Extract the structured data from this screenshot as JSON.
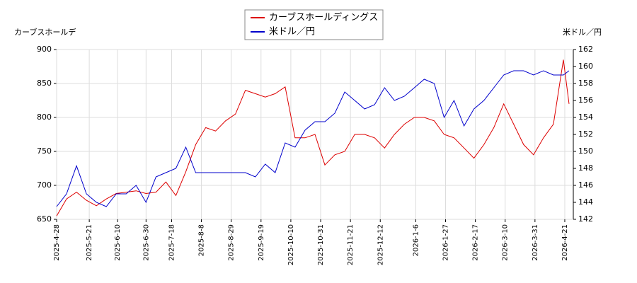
{
  "chart_data": {
    "type": "line",
    "y_label": "カーブスホールデ",
    "y2_label": "米ドル／円",
    "x": [
      "2025-04-28",
      "2025-05-05",
      "2025-05-12",
      "2025-05-19",
      "2025-05-26",
      "2025-06-02",
      "2025-06-09",
      "2025-06-16",
      "2025-06-23",
      "2025-06-30",
      "2025-07-07",
      "2025-07-14",
      "2025-07-21",
      "2025-07-28",
      "2025-08-04",
      "2025-08-11",
      "2025-08-18",
      "2025-08-25",
      "2025-09-01",
      "2025-09-08",
      "2025-09-15",
      "2025-09-22",
      "2025-09-29",
      "2025-10-06",
      "2025-10-13",
      "2025-10-20",
      "2025-10-27",
      "2025-11-03",
      "2025-11-10",
      "2025-11-17",
      "2025-11-24",
      "2025-12-01",
      "2025-12-08",
      "2025-12-15",
      "2025-12-22",
      "2025-12-29",
      "2026-01-05",
      "2026-01-12",
      "2026-01-19",
      "2026-01-26",
      "2026-02-02",
      "2026-02-09",
      "2026-02-16",
      "2026-02-23",
      "2026-03-02",
      "2026-03-09",
      "2026-03-16",
      "2026-03-23",
      "2026-03-30",
      "2026-04-06",
      "2026-04-13",
      "2026-04-20",
      "2026-04-24"
    ],
    "series": [
      {
        "name": "カーブスホールディングス",
        "color": "#dd0000",
        "axis": "y",
        "values": [
          655,
          680,
          690,
          678,
          670,
          680,
          688,
          690,
          692,
          688,
          690,
          705,
          685,
          720,
          760,
          785,
          780,
          795,
          805,
          840,
          835,
          830,
          835,
          845,
          770,
          770,
          775,
          730,
          745,
          750,
          775,
          775,
          770,
          755,
          775,
          790,
          800,
          800,
          795,
          775,
          770,
          755,
          740,
          760,
          785,
          820,
          790,
          760,
          745,
          770,
          790,
          885,
          820
        ]
      },
      {
        "name": "米ドル／円",
        "color": "#0000cc",
        "axis": "y2",
        "values": [
          143.5,
          145,
          148.3,
          145,
          144,
          143.5,
          145,
          145,
          146,
          144,
          147,
          147.5,
          148,
          150.5,
          147.5,
          147.5,
          147.5,
          147.5,
          147.5,
          147.5,
          147,
          148.5,
          147.5,
          151,
          150.5,
          152.5,
          153.5,
          153.5,
          154.5,
          157,
          156,
          155,
          155.5,
          157.5,
          156,
          156.5,
          157.5,
          158.5,
          158,
          154,
          156,
          153,
          155,
          156,
          157.5,
          159,
          159.5,
          159.5,
          159,
          159.5,
          159,
          159,
          159.5
        ]
      }
    ],
    "xlim": [
      "2025-04-28",
      "2026-04-27"
    ],
    "xticks": [
      {
        "value": "2025-04-28",
        "label": "2025-4-28"
      },
      {
        "value": "2025-05-21",
        "label": "2025-5-21"
      },
      {
        "value": "2025-06-10",
        "label": "2025-6-10"
      },
      {
        "value": "2025-06-30",
        "label": "2025-6-30"
      },
      {
        "value": "2025-07-18",
        "label": "2025-7-18"
      },
      {
        "value": "2025-08-08",
        "label": "2025-8-8"
      },
      {
        "value": "2025-08-29",
        "label": "2025-8-29"
      },
      {
        "value": "2025-09-19",
        "label": "2025-9-19"
      },
      {
        "value": "2025-10-10",
        "label": "2025-10-10"
      },
      {
        "value": "2025-10-31",
        "label": "2025-10-31"
      },
      {
        "value": "2025-11-21",
        "label": "2025-11-21"
      },
      {
        "value": "2025-12-12",
        "label": "2025-12-12"
      },
      {
        "value": "2026-01-06",
        "label": "2026-1-6"
      },
      {
        "value": "2026-01-27",
        "label": "2026-1-27"
      },
      {
        "value": "2026-02-17",
        "label": "2026-2-17"
      },
      {
        "value": "2026-03-10",
        "label": "2026-3-10"
      },
      {
        "value": "2026-03-31",
        "label": "2026-3-31"
      },
      {
        "value": "2026-04-21",
        "label": "2026-4-21"
      }
    ],
    "ylim": [
      650,
      900
    ],
    "yticks": [
      650,
      700,
      750,
      800,
      850,
      900
    ],
    "y2lim": [
      142,
      162
    ],
    "y2ticks": [
      142,
      144,
      146,
      148,
      150,
      152,
      154,
      156,
      158,
      160,
      162
    ],
    "grid": true,
    "legend": "top"
  }
}
